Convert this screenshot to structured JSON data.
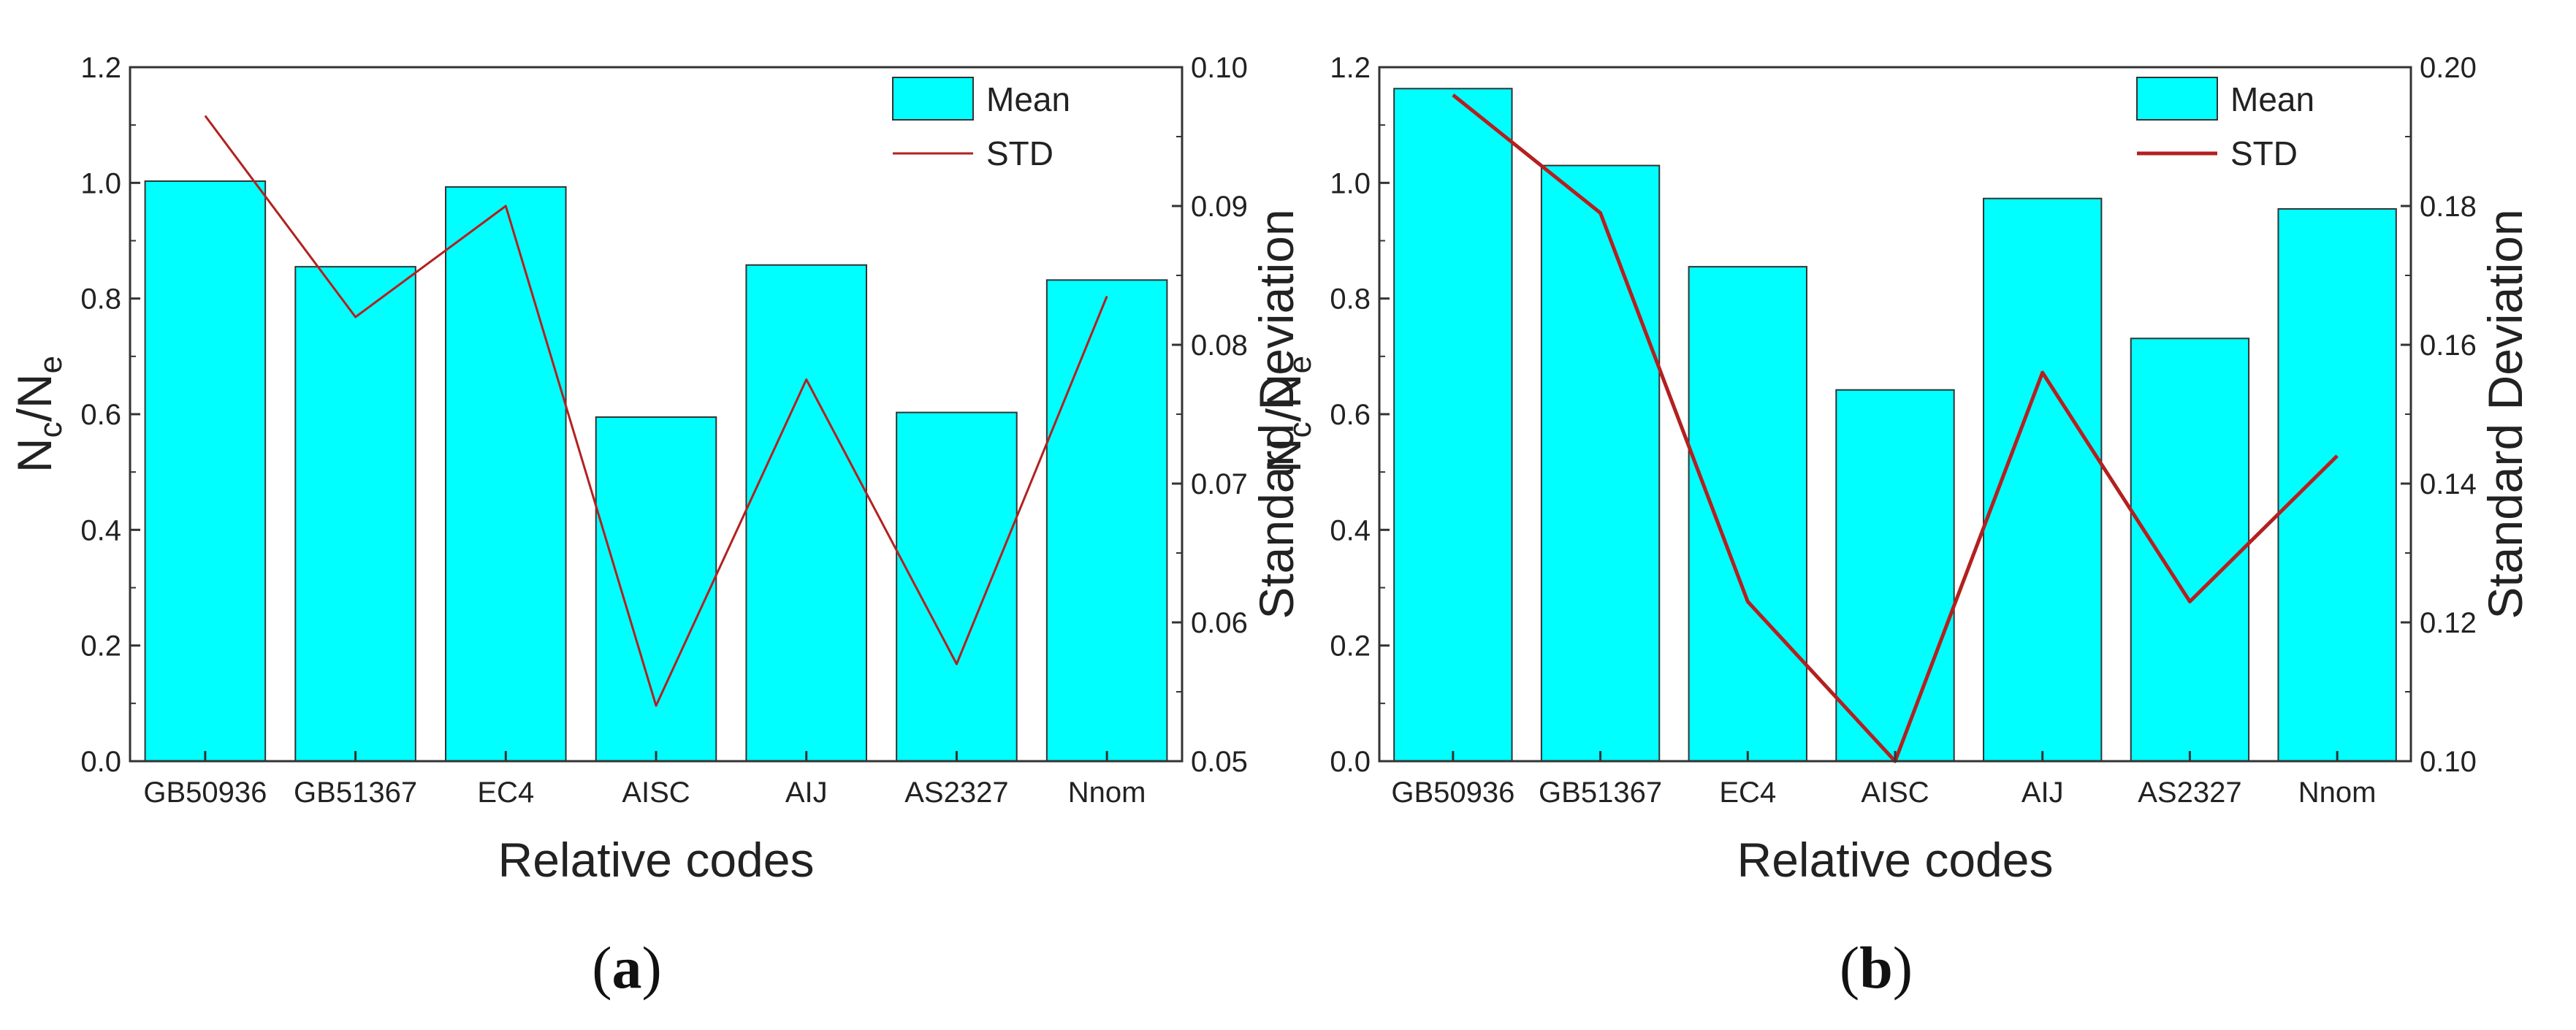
{
  "chart_data": [
    {
      "type": "bar",
      "panel": "a",
      "caption_open": "(",
      "caption_letter": "a",
      "caption_close": ")",
      "categories": [
        "GB50936",
        "GB51367",
        "EC4",
        "AISC",
        "AIJ",
        "AS2327",
        "Nnom"
      ],
      "series": [
        {
          "name": "Mean",
          "type": "bar",
          "axis": "left",
          "color": "#00ffff",
          "values": [
            1.003,
            0.855,
            0.993,
            0.595,
            0.858,
            0.603,
            0.832
          ]
        },
        {
          "name": "STD",
          "type": "line",
          "axis": "right",
          "color": "#b3201f",
          "values": [
            0.0965,
            0.082,
            0.09,
            0.054,
            0.0775,
            0.057,
            0.0835
          ]
        }
      ],
      "xlabel": "Relative codes",
      "ylabel_left": {
        "main": "N",
        "sub1": "c",
        "sep": "/N",
        "sub2": "e"
      },
      "ylabel_right": "Standard Deviation",
      "ylim_left": [
        0,
        1.2
      ],
      "yticks_left": [
        "0.0",
        "0.2",
        "0.4",
        "0.6",
        "0.8",
        "1.0",
        "1.2"
      ],
      "ylim_right": [
        0.05,
        0.1
      ],
      "yticks_right": [
        "0.05",
        "0.06",
        "0.07",
        "0.08",
        "0.09",
        "0.10"
      ],
      "legend_position": "top-right"
    },
    {
      "type": "bar",
      "panel": "b",
      "caption_open": "(",
      "caption_letter": "b",
      "caption_close": ")",
      "categories": [
        "GB50936",
        "GB51367",
        "EC4",
        "AISC",
        "AIJ",
        "AS2327",
        "Nnom"
      ],
      "series": [
        {
          "name": "Mean",
          "type": "bar",
          "axis": "left",
          "color": "#00ffff",
          "values": [
            1.163,
            1.03,
            0.855,
            0.642,
            0.973,
            0.731,
            0.955
          ]
        },
        {
          "name": "STD",
          "type": "line",
          "axis": "right",
          "color": "#b3201f",
          "values": [
            0.196,
            0.179,
            0.123,
            0.1,
            0.156,
            0.123,
            0.144
          ]
        }
      ],
      "xlabel": "Relative codes",
      "ylabel_left": {
        "main": "N",
        "sub1": "c",
        "sep": "/N",
        "sub2": "e"
      },
      "ylabel_right": "Standard Deviation",
      "ylim_left": [
        0,
        1.2
      ],
      "yticks_left": [
        "0.0",
        "0.2",
        "0.4",
        "0.6",
        "0.8",
        "1.0",
        "1.2"
      ],
      "ylim_right": [
        0.1,
        0.2
      ],
      "yticks_right": [
        "0.10",
        "0.12",
        "0.14",
        "0.16",
        "0.18",
        "0.20"
      ],
      "legend_position": "top-right"
    }
  ]
}
